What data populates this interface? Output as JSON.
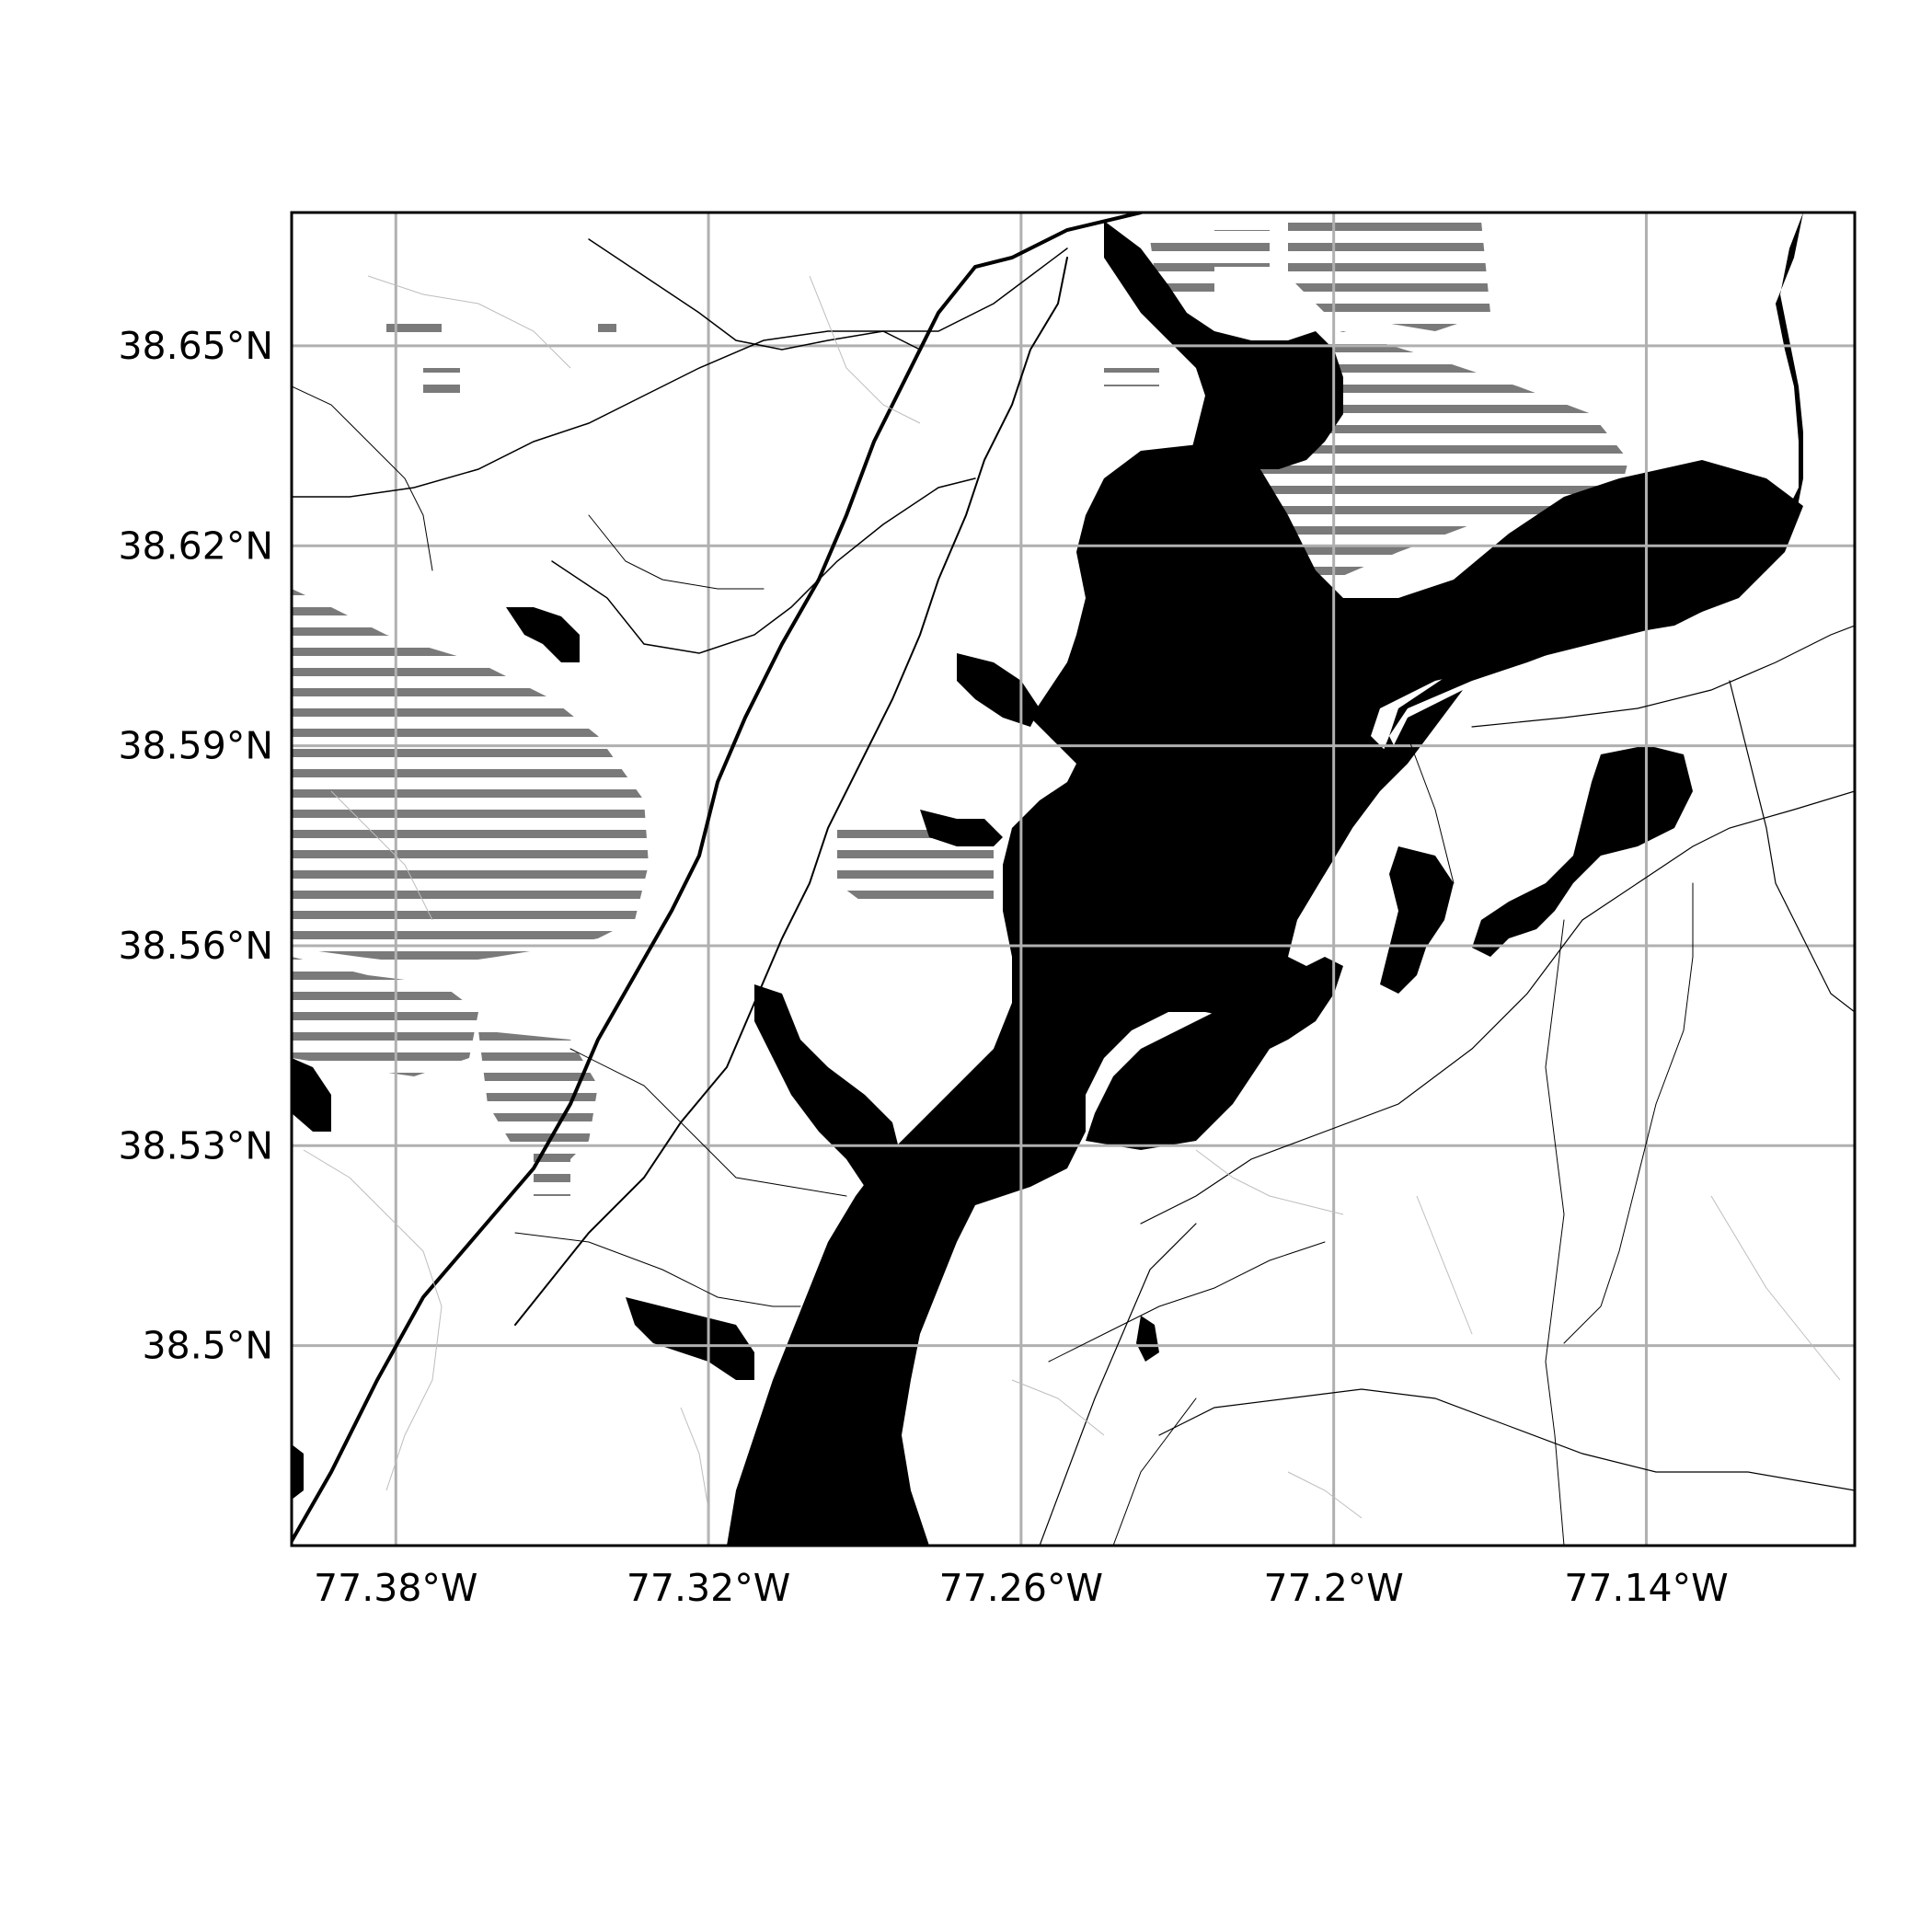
{
  "map": {
    "extent": {
      "lon_min": -77.4,
      "lon_max": -77.1,
      "lat_min": 38.47,
      "lat_max": 38.67
    },
    "lon_ticks": [
      {
        "value": -77.38,
        "label": "77.38°W"
      },
      {
        "value": -77.32,
        "label": "77.32°W"
      },
      {
        "value": -77.26,
        "label": "77.26°W"
      },
      {
        "value": -77.2,
        "label": "77.2°W"
      },
      {
        "value": -77.14,
        "label": "77.14°W"
      }
    ],
    "lat_ticks": [
      {
        "value": 38.65,
        "label": "38.65°N"
      },
      {
        "value": 38.62,
        "label": "38.62°N"
      },
      {
        "value": 38.59,
        "label": "38.59°N"
      },
      {
        "value": 38.56,
        "label": "38.56°N"
      },
      {
        "value": 38.53,
        "label": "38.53°N"
      },
      {
        "value": 38.5,
        "label": "38.5°N"
      }
    ],
    "grid": true,
    "colors": {
      "water": "#000000",
      "land": "#ffffff",
      "grid": "#b0b0b0",
      "hatch": "#7a7a7a",
      "road": "#000000",
      "minor_road": "#bdbdbd"
    }
  }
}
